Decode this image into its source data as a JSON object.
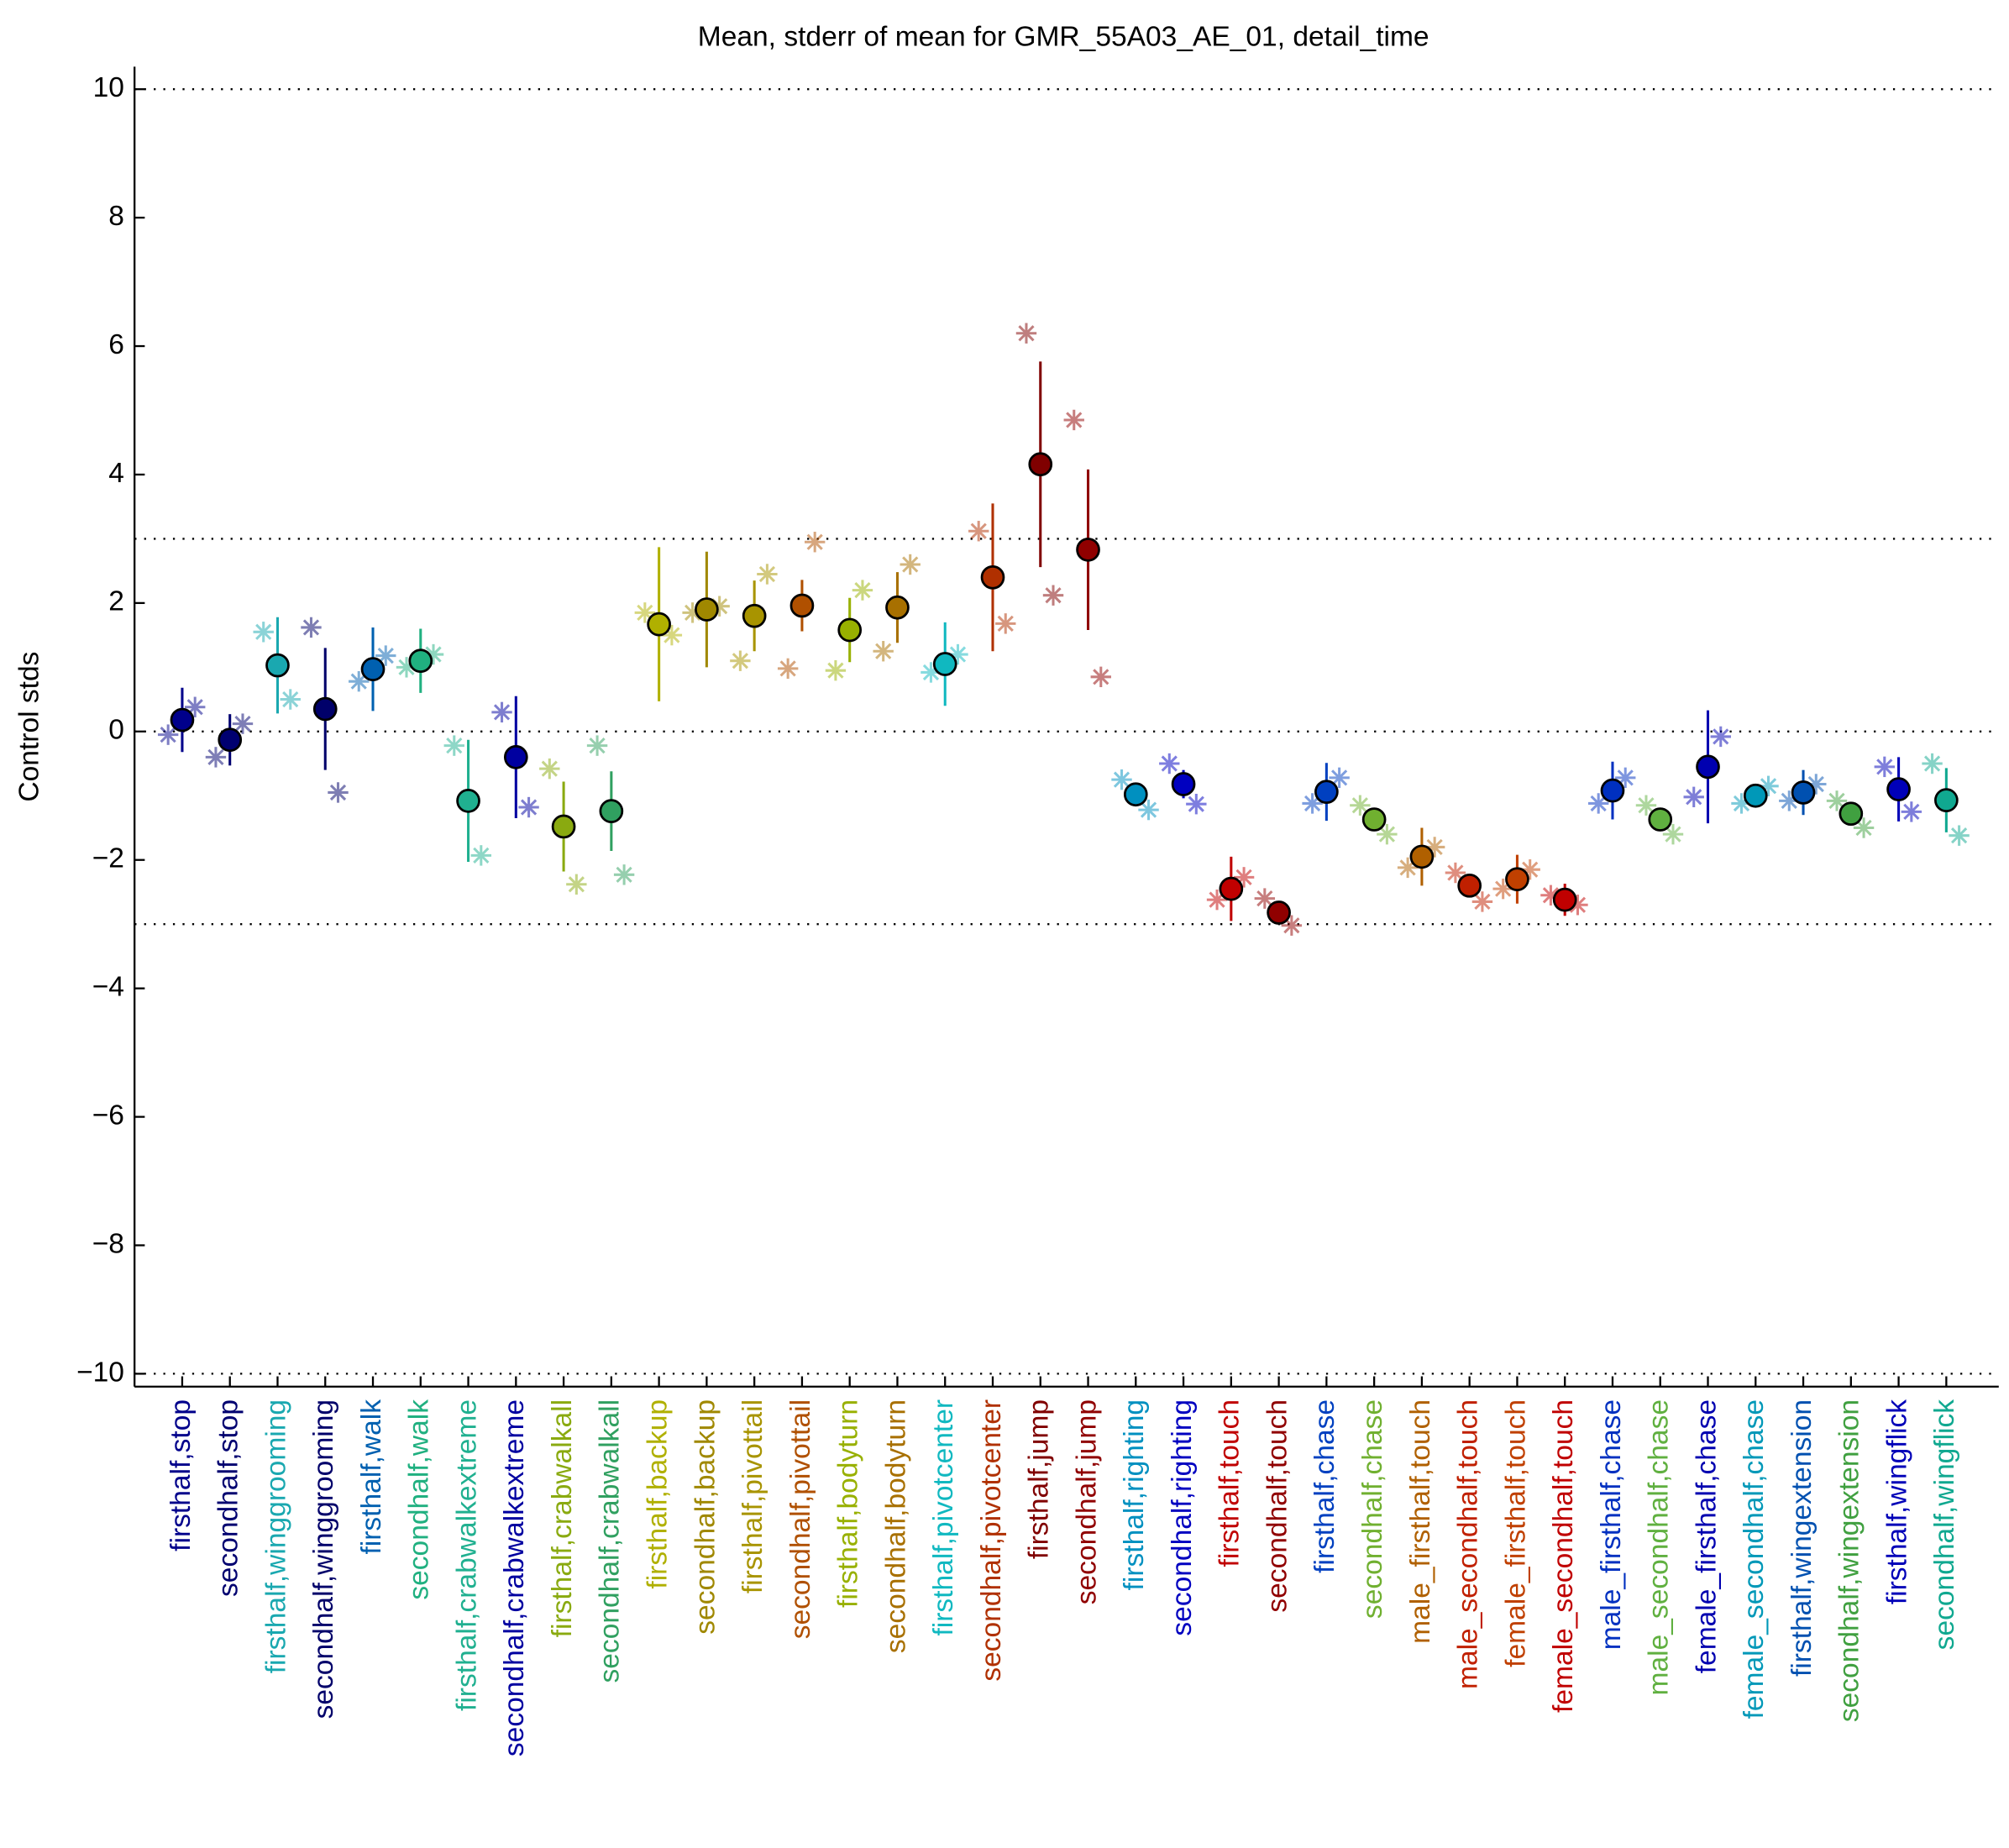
{
  "chart_data": {
    "type": "errorbar",
    "title": "Mean, stderr of mean for GMR_55A03_AE_01, detail_time",
    "ylabel": "Control stds",
    "ylim": [
      -10.2,
      10.35
    ],
    "yticks": [
      {
        "value": -10,
        "label": "−10"
      },
      {
        "value": -8,
        "label": "−8"
      },
      {
        "value": -6,
        "label": "−6"
      },
      {
        "value": -4,
        "label": "−4"
      },
      {
        "value": -2,
        "label": "−2"
      },
      0,
      2,
      4,
      6,
      8,
      10
    ],
    "reference_lines": [
      -10,
      -3,
      0,
      3,
      10
    ],
    "categories": [
      "firsthalf,stop",
      "secondhalf,stop",
      "firsthalf,winggrooming",
      "secondhalf,winggrooming",
      "firsthalf,walk",
      "secondhalf,walk",
      "firsthalf,crabwalkextreme",
      "secondhalf,crabwalkextreme",
      "firsthalf,crabwalkall",
      "secondhalf,crabwalkall",
      "firsthalf,backup",
      "secondhalf,backup",
      "firsthalf,pivottail",
      "secondhalf,pivottail",
      "firsthalf,bodyturn",
      "secondhalf,bodyturn",
      "firsthalf,pivotcenter",
      "secondhalf,pivotcenter",
      "firsthalf,jump",
      "secondhalf,jump",
      "firsthalf,righting",
      "secondhalf,righting",
      "firsthalf,touch",
      "secondhalf,touch",
      "firsthalf,chase",
      "secondhalf,chase",
      "male_firsthalf,touch",
      "male_secondhalf,touch",
      "female_firsthalf,touch",
      "female_secondhalf,touch",
      "male_firsthalf,chase",
      "male_secondhalf,chase",
      "female_firsthalf,chase",
      "female_secondhalf,chase",
      "firsthalf,wingextension",
      "secondhalf,wingextension",
      "firsthalf,wingflick",
      "secondhalf,wingflick"
    ],
    "values": [
      0.18,
      -0.13,
      1.03,
      0.35,
      0.97,
      1.1,
      -1.08,
      -0.4,
      -1.48,
      -1.24,
      1.67,
      1.9,
      1.8,
      1.96,
      1.58,
      1.93,
      1.05,
      2.4,
      4.16,
      2.83,
      -0.98,
      -0.82,
      -2.45,
      -2.82,
      -0.94,
      -1.37,
      -1.95,
      -2.4,
      -2.3,
      -2.62,
      -0.92,
      -1.37,
      -0.55,
      -1.0,
      -0.95,
      -1.28,
      -0.9,
      -1.07
    ],
    "errors": [
      0.5,
      0.4,
      0.75,
      0.95,
      0.65,
      0.5,
      0.95,
      0.95,
      0.7,
      0.62,
      1.2,
      0.9,
      0.55,
      0.4,
      0.5,
      0.55,
      0.65,
      1.15,
      1.6,
      1.25,
      0.12,
      0.22,
      0.5,
      0.15,
      0.45,
      0.1,
      0.45,
      0.15,
      0.38,
      0.25,
      0.45,
      0.1,
      0.88,
      0.1,
      0.35,
      0.05,
      0.5,
      0.5
    ],
    "points": [
      [
        -0.05,
        0.38
      ],
      [
        -0.4,
        0.12
      ],
      [
        1.55,
        0.5
      ],
      [
        1.62,
        -0.95
      ],
      [
        0.78,
        1.18
      ],
      [
        1.0,
        1.2
      ],
      [
        -0.22,
        -1.93
      ],
      [
        0.3,
        -1.18
      ],
      [
        -0.58,
        -2.38
      ],
      [
        -0.22,
        -2.23
      ],
      [
        1.85,
        1.5
      ],
      [
        1.85,
        1.95
      ],
      [
        1.1,
        2.45
      ],
      [
        0.98,
        2.95
      ],
      [
        0.95,
        2.2
      ],
      [
        1.25,
        2.6
      ],
      [
        0.92,
        1.2
      ],
      [
        3.12,
        1.68
      ],
      [
        6.2,
        2.12
      ],
      [
        4.85,
        0.85
      ],
      [
        -0.75,
        -1.22
      ],
      [
        -0.5,
        -1.13
      ],
      [
        -2.62,
        -2.27
      ],
      [
        -2.6,
        -3.02
      ],
      [
        -1.12,
        -0.72
      ],
      [
        -1.15,
        -1.6
      ],
      [
        -2.12,
        -1.8
      ],
      [
        -2.2,
        -2.65
      ],
      [
        -2.45,
        -2.15
      ],
      [
        -2.55,
        -2.7
      ],
      [
        -1.12,
        -0.72
      ],
      [
        -1.15,
        -1.6
      ],
      [
        -1.02,
        -0.08
      ],
      [
        -1.12,
        -0.85
      ],
      [
        -1.08,
        -0.82
      ],
      [
        -1.08,
        -1.5
      ],
      [
        -0.55,
        -1.25
      ],
      [
        -0.5,
        -1.62
      ]
    ],
    "colors": [
      "#00008b",
      "#000070",
      "#1aa8b0",
      "#00006a",
      "#0060b0",
      "#20b080",
      "#20b090",
      "#0000a0",
      "#8aaa10",
      "#30a060",
      "#b0b000",
      "#a08800",
      "#a89400",
      "#b05000",
      "#98b000",
      "#a87000",
      "#10b8c0",
      "#b03000",
      "#800000",
      "#900000",
      "#0090c0",
      "#0000c0",
      "#c00000",
      "#900000",
      "#0040c0",
      "#70b030",
      "#b06000",
      "#c02000",
      "#c04000",
      "#c00000",
      "#0030c0",
      "#60b040",
      "#0000b0",
      "#0098b8",
      "#0050b0",
      "#40a040",
      "#0000b8",
      "#10a890"
    ]
  }
}
